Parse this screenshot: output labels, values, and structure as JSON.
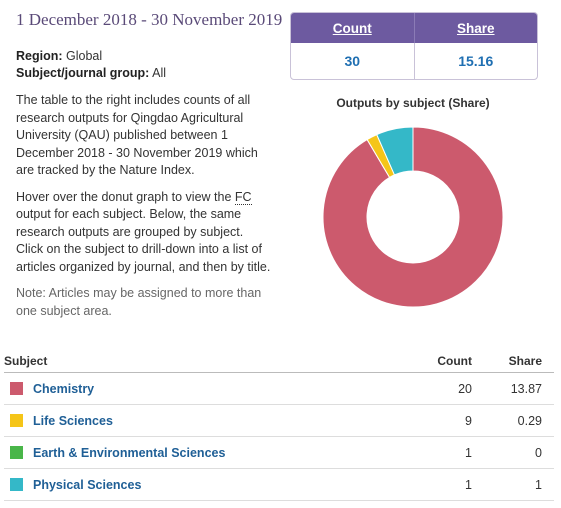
{
  "date_range": "1 December 2018 - 30 November 2019",
  "region": {
    "label": "Region:",
    "value": "Global"
  },
  "subject_group": {
    "label": "Subject/journal group:",
    "value": "All"
  },
  "description": {
    "p1": "The table to the right includes counts of all research outputs for Qingdao Agricultural University (QAU) published between 1 December 2018 - 30 November 2019 which are tracked by the Nature Index.",
    "p2_before": "Hover over the donut graph to view the ",
    "p2_abbr": "FC",
    "p2_after": " output for each subject. Below, the same research outputs are grouped by subject. Click on the subject to drill-down into a list of articles organized by journal, and then by title.",
    "note": "Note: Articles may be assigned to more than one subject area."
  },
  "summary": {
    "count_label": "Count",
    "share_label": "Share",
    "count_value": "30",
    "share_value": "15.16"
  },
  "donut_title": "Outputs by subject (Share)",
  "table": {
    "headers": {
      "subject": "Subject",
      "count": "Count",
      "share": "Share"
    },
    "rows": [
      {
        "subject": "Chemistry",
        "count": "20",
        "share": "13.87",
        "color": "#cc5a6d"
      },
      {
        "subject": "Life Sciences",
        "count": "9",
        "share": "0.29",
        "color": "#f5c518"
      },
      {
        "subject": "Earth & Environmental Sciences",
        "count": "1",
        "share": "0",
        "color": "#49b649"
      },
      {
        "subject": "Physical Sciences",
        "count": "1",
        "share": "1",
        "color": "#34b8c8"
      }
    ]
  },
  "chart_data": {
    "type": "pie",
    "title": "Outputs by subject (Share)",
    "categories": [
      "Chemistry",
      "Life Sciences",
      "Earth & Environmental Sciences",
      "Physical Sciences"
    ],
    "values": [
      13.87,
      0.29,
      0,
      1
    ],
    "colors": [
      "#cc5a6d",
      "#f5c518",
      "#49b649",
      "#34b8c8"
    ]
  }
}
